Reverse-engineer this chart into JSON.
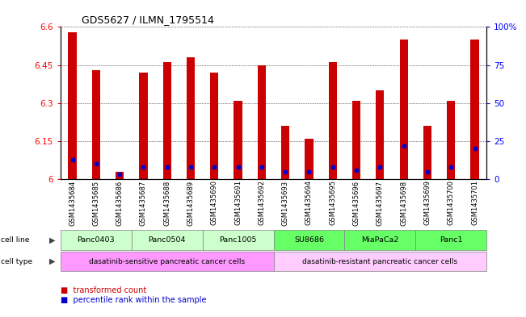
{
  "title": "GDS5627 / ILMN_1795514",
  "samples": [
    "GSM1435684",
    "GSM1435685",
    "GSM1435686",
    "GSM1435687",
    "GSM1435688",
    "GSM1435689",
    "GSM1435690",
    "GSM1435691",
    "GSM1435692",
    "GSM1435693",
    "GSM1435694",
    "GSM1435695",
    "GSM1435696",
    "GSM1435697",
    "GSM1435698",
    "GSM1435699",
    "GSM1435700",
    "GSM1435701"
  ],
  "red_values": [
    6.58,
    6.43,
    6.03,
    6.42,
    6.46,
    6.48,
    6.42,
    6.31,
    6.45,
    6.21,
    6.16,
    6.46,
    6.31,
    6.35,
    6.55,
    6.21,
    6.31,
    6.55
  ],
  "blue_values": [
    13,
    10,
    3,
    8,
    8,
    8,
    8,
    8,
    8,
    5,
    5,
    8,
    6,
    8,
    22,
    5,
    8,
    20
  ],
  "ylim_left": [
    6.0,
    6.6
  ],
  "ylim_right": [
    0,
    100
  ],
  "yticks_left": [
    6.0,
    6.15,
    6.3,
    6.45,
    6.6
  ],
  "ytick_labels_left": [
    "6",
    "6.15",
    "6.3",
    "6.45",
    "6.6"
  ],
  "yticks_right": [
    0,
    25,
    50,
    75,
    100
  ],
  "ytick_labels_right": [
    "0",
    "25",
    "50",
    "75",
    "100%"
  ],
  "cell_lines": [
    {
      "name": "Panc0403",
      "start": 0,
      "end": 2,
      "color": "#ccffcc"
    },
    {
      "name": "Panc0504",
      "start": 3,
      "end": 5,
      "color": "#ccffcc"
    },
    {
      "name": "Panc1005",
      "start": 6,
      "end": 8,
      "color": "#ccffcc"
    },
    {
      "name": "SU8686",
      "start": 9,
      "end": 11,
      "color": "#66ff66"
    },
    {
      "name": "MiaPaCa2",
      "start": 12,
      "end": 14,
      "color": "#66ff66"
    },
    {
      "name": "Panc1",
      "start": 15,
      "end": 17,
      "color": "#66ff66"
    }
  ],
  "cell_types": [
    {
      "name": "dasatinib-sensitive pancreatic cancer cells",
      "start": 0,
      "end": 8,
      "color": "#ff99ff"
    },
    {
      "name": "dasatinib-resistant pancreatic cancer cells",
      "start": 9,
      "end": 17,
      "color": "#ffccff"
    }
  ],
  "legend": [
    {
      "label": "transformed count",
      "color": "#cc0000"
    },
    {
      "label": "percentile rank within the sample",
      "color": "#0000cc"
    }
  ],
  "bar_color": "#cc0000",
  "blue_color": "#0000cc",
  "bar_width": 0.35,
  "base_value": 6.0,
  "gray_bg": "#c8c8c8",
  "label_arrow_color": "#444444"
}
